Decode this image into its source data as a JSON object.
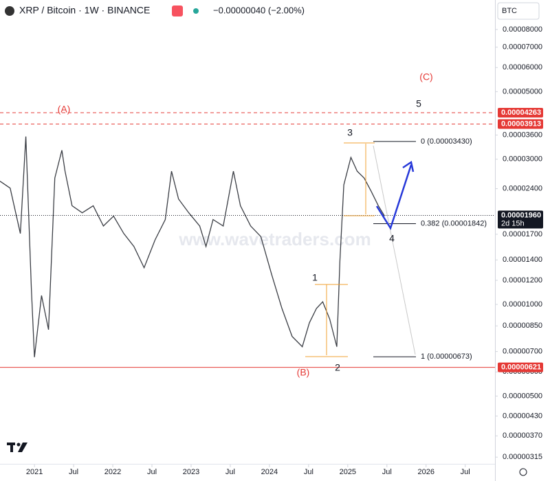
{
  "chart_data": {
    "type": "line",
    "title": "XRP / Bitcoin · 1W · BINANCE",
    "change": "−0.00000040 (−2.00%)",
    "currency": "BTC",
    "watermark": "www.wavetraders.com",
    "log_scale": true,
    "color": "#3a3d44",
    "x": [
      2020.56,
      2020.69,
      2020.82,
      2020.89,
      2020.96,
      2021.0,
      2021.09,
      2021.18,
      2021.26,
      2021.35,
      2021.39,
      2021.48,
      2021.61,
      2021.75,
      2021.88,
      2022.01,
      2022.14,
      2022.27,
      2022.4,
      2022.54,
      2022.67,
      2022.75,
      2022.84,
      2022.97,
      2023.11,
      2023.19,
      2023.28,
      2023.41,
      2023.54,
      2023.63,
      2023.76,
      2023.89,
      2024.03,
      2024.16,
      2024.29,
      2024.42,
      2024.51,
      2024.6,
      2024.68,
      2024.77,
      2024.86,
      2024.9,
      2024.95,
      2025.04,
      2025.12,
      2025.21,
      2025.3,
      2025.39,
      2025.47
    ],
    "values": [
      2.54e-05,
      2.41e-05,
      1.71e-05,
      3.56e-05,
      1.13e-05,
      6.71e-06,
      1.07e-05,
      8.26e-06,
      2.6e-05,
      3.21e-05,
      2.74e-05,
      2.11e-05,
      2e-05,
      2.11e-05,
      1.81e-05,
      1.95e-05,
      1.71e-05,
      1.55e-05,
      1.32e-05,
      1.63e-05,
      1.9e-05,
      2.74e-05,
      2.22e-05,
      2e-05,
      1.81e-05,
      1.55e-05,
      1.9e-05,
      1.81e-05,
      2.74e-05,
      2.11e-05,
      1.81e-05,
      1.67e-05,
      1.25e-05,
      9.7e-06,
      7.85e-06,
      7.26e-06,
      8.7e-06,
      9.7e-06,
      1.02e-05,
      8.95e-06,
      7.26e-06,
      1.39e-05,
      2.47e-05,
      3.04e-05,
      2.74e-05,
      2.6e-05,
      2.35e-05,
      2.11e-05,
      1.95e-05
    ],
    "xlim": [
      2020.56,
      2026.88
    ],
    "ylim": [
      2.77e-06,
      0.0001
    ],
    "xticks": [
      {
        "value": 2021,
        "label": "2021"
      },
      {
        "value": 2021.5,
        "label": "Jul"
      },
      {
        "value": 2022,
        "label": "2022"
      },
      {
        "value": 2022.5,
        "label": "Jul"
      },
      {
        "value": 2023,
        "label": "2023"
      },
      {
        "value": 2023.5,
        "label": "Jul"
      },
      {
        "value": 2024,
        "label": "2024"
      },
      {
        "value": 2024.5,
        "label": "Jul"
      },
      {
        "value": 2025,
        "label": "2025"
      },
      {
        "value": 2025.5,
        "label": "Jul"
      },
      {
        "value": 2026,
        "label": "2026"
      },
      {
        "value": 2026.5,
        "label": "Jul"
      }
    ],
    "yticks": [
      {
        "value": 8e-05,
        "label": "0.00008000"
      },
      {
        "value": 7e-05,
        "label": "0.00007000"
      },
      {
        "value": 6e-05,
        "label": "0.00006000"
      },
      {
        "value": 5e-05,
        "label": "0.00005000"
      },
      {
        "value": 3.6e-05,
        "label": "0.00003600"
      },
      {
        "value": 3e-05,
        "label": "0.00003000"
      },
      {
        "value": 2.4e-05,
        "label": "0.00002400"
      },
      {
        "value": 1.7e-05,
        "label": "0.00001700"
      },
      {
        "value": 1.4e-05,
        "label": "0.00001400"
      },
      {
        "value": 1.2e-05,
        "label": "0.00001200"
      },
      {
        "value": 1e-05,
        "label": "0.00001000"
      },
      {
        "value": 8.5e-06,
        "label": "0.00000850"
      },
      {
        "value": 7e-06,
        "label": "0.00000700"
      },
      {
        "value": 6e-06,
        "label": "0.00000600"
      },
      {
        "value": 5e-06,
        "label": "0.00000500"
      },
      {
        "value": 4.3e-06,
        "label": "0.00000430"
      },
      {
        "value": 3.7e-06,
        "label": "0.00000370"
      },
      {
        "value": 3.15e-06,
        "label": "0.00000315"
      }
    ],
    "price_lines": [
      {
        "value": 4.263e-05,
        "label": "0.00004263",
        "color": "#e53935"
      },
      {
        "value": 3.913e-05,
        "label": "0.00003913",
        "color": "#e53935"
      },
      {
        "value": 1.96e-05,
        "label": "0.00001960",
        "color": "#131722",
        "countdown": "2d 15h"
      },
      {
        "value": 6.21e-06,
        "label": "0.00000621",
        "color": "#e53935"
      }
    ],
    "fib_levels": [
      {
        "value": 3.43e-05,
        "label": "0 (0.00003430)"
      },
      {
        "value": 1.842e-05,
        "label": "0.382 (0.00001842)"
      },
      {
        "value": 6.73e-06,
        "label": "1 (0.00000673)"
      }
    ],
    "waves": [
      "(A)",
      "(B)",
      "(C)",
      "1",
      "2",
      "3",
      "4",
      "5"
    ]
  }
}
